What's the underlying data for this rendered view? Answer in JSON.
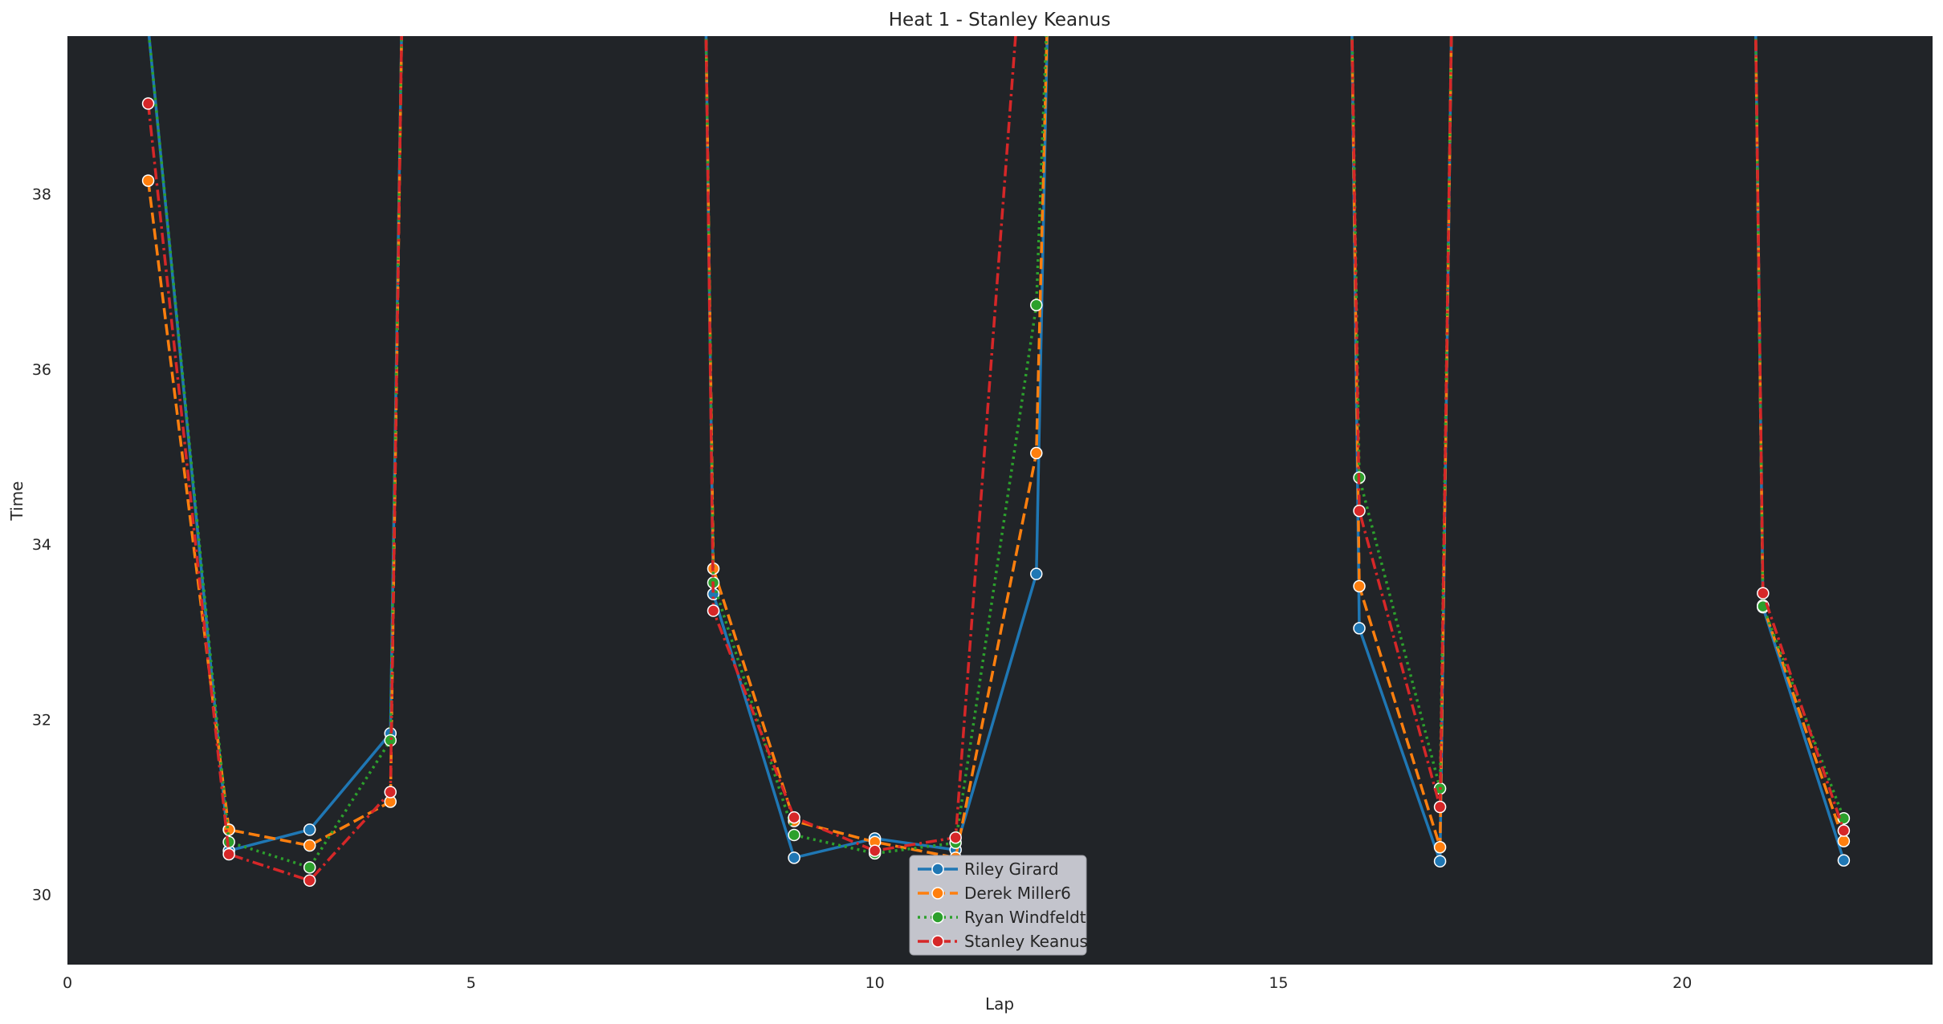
{
  "chart_data": {
    "type": "line",
    "title": "Heat 1 - Stanley Keanus",
    "xlabel": "Lap",
    "ylabel": "Time",
    "xlim": [
      0,
      23.1
    ],
    "ylim": [
      29.2,
      39.8
    ],
    "xticks": [
      0,
      5,
      10,
      15,
      20
    ],
    "yticks": [
      30,
      32,
      34,
      36,
      38
    ],
    "grid": false,
    "legend_position": "bottom-center",
    "colors": {
      "plot_background": "#212428",
      "figure_background": "#ffffff",
      "legend_background": "#c3c4cc"
    },
    "series": [
      {
        "name": "Riley Girard",
        "color": "#1f77b4",
        "dash": "solid",
        "points": [
          [
            1,
            39.9
          ],
          [
            2,
            30.5
          ],
          [
            3,
            30.74
          ],
          [
            4,
            31.84
          ],
          [
            4.15,
            40.5
          ],
          [
            null,
            null
          ],
          [
            7.9,
            40.5
          ],
          [
            8,
            33.43
          ],
          [
            9,
            30.42
          ],
          [
            10,
            30.64
          ],
          [
            11,
            30.51
          ],
          [
            12,
            33.66
          ],
          [
            12.15,
            40.5
          ],
          [
            null,
            null
          ],
          [
            15.9,
            40.5
          ],
          [
            16,
            33.04
          ],
          [
            17,
            30.38
          ],
          [
            17.15,
            40.5
          ],
          [
            null,
            null
          ],
          [
            20.9,
            40.5
          ],
          [
            21,
            33.28
          ],
          [
            22,
            30.39
          ]
        ]
      },
      {
        "name": "Derek Miller6",
        "color": "#ff7f0e",
        "dash": "dashed",
        "points": [
          [
            1,
            38.15
          ],
          [
            2,
            30.74
          ],
          [
            3,
            30.56
          ],
          [
            4,
            31.06
          ],
          [
            4.15,
            40.5
          ],
          [
            null,
            null
          ],
          [
            7.9,
            40.5
          ],
          [
            8,
            33.72
          ],
          [
            9,
            30.84
          ],
          [
            10,
            30.6
          ],
          [
            11,
            30.42
          ],
          [
            12,
            35.04
          ],
          [
            12.15,
            40.5
          ],
          [
            null,
            null
          ],
          [
            15.9,
            40.5
          ],
          [
            16,
            33.52
          ],
          [
            17,
            30.54
          ],
          [
            17.15,
            40.5
          ],
          [
            null,
            null
          ],
          [
            20.9,
            40.5
          ],
          [
            21,
            33.3
          ],
          [
            22,
            30.61
          ]
        ]
      },
      {
        "name": "Ryan Windfeldt",
        "color": "#2ca02c",
        "dash": "dotted",
        "points": [
          [
            1,
            39.9
          ],
          [
            2,
            30.6
          ],
          [
            3,
            30.31
          ],
          [
            4,
            31.76
          ],
          [
            4.15,
            40.5
          ],
          [
            null,
            null
          ],
          [
            7.9,
            40.5
          ],
          [
            8,
            33.56
          ],
          [
            9,
            30.68
          ],
          [
            10,
            30.47
          ],
          [
            11,
            30.59
          ],
          [
            12,
            36.73
          ],
          [
            12.15,
            40.5
          ],
          [
            null,
            null
          ],
          [
            15.9,
            40.5
          ],
          [
            16,
            34.76
          ],
          [
            17,
            31.21
          ],
          [
            17.15,
            40.5
          ],
          [
            null,
            null
          ],
          [
            20.9,
            40.5
          ],
          [
            21,
            33.29
          ],
          [
            22,
            30.87
          ]
        ]
      },
      {
        "name": "Stanley Keanus",
        "color": "#d62728",
        "dash": "dashdot",
        "points": [
          [
            1,
            39.03
          ],
          [
            2,
            30.46
          ],
          [
            3,
            30.16
          ],
          [
            4,
            31.17
          ],
          [
            4.15,
            40.5
          ],
          [
            null,
            null
          ],
          [
            7.9,
            40.5
          ],
          [
            8,
            33.24
          ],
          [
            9,
            30.88
          ],
          [
            10,
            30.5
          ],
          [
            11,
            30.65
          ],
          [
            11.8,
            40.5
          ],
          [
            null,
            null
          ],
          [
            15.9,
            40.5
          ],
          [
            16,
            34.38
          ],
          [
            17,
            31.0
          ],
          [
            17.15,
            40.5
          ],
          [
            null,
            null
          ],
          [
            20.9,
            40.5
          ],
          [
            21,
            33.44
          ],
          [
            22,
            30.73
          ]
        ]
      }
    ]
  }
}
